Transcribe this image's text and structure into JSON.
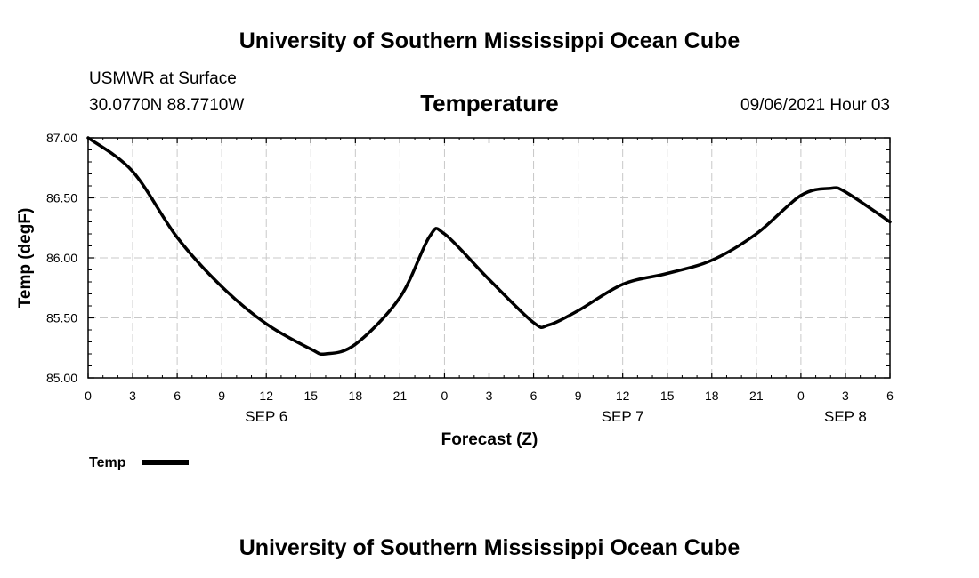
{
  "header": {
    "title_top": "University of Southern Mississippi Ocean Cube",
    "station": "USMWR at Surface",
    "location": "30.0770N  88.7710W",
    "timestamp": "09/06/2021 Hour 03",
    "title_bottom": "University of Southern Mississippi Ocean Cube"
  },
  "chart_data": {
    "type": "line",
    "title": "Temperature",
    "xlabel": "Forecast (Z)",
    "ylabel": "Temp (degF)",
    "ylim": [
      85.0,
      87.0
    ],
    "yticks": [
      "85.00",
      "85.50",
      "86.00",
      "86.50",
      "87.00"
    ],
    "xticks": [
      "0",
      "3",
      "6",
      "9",
      "12",
      "15",
      "18",
      "21",
      "0",
      "3",
      "6",
      "9",
      "12",
      "15",
      "18",
      "21",
      "0",
      "3",
      "6"
    ],
    "date_labels": [
      {
        "label": "SEP 6",
        "tick_index": 4
      },
      {
        "label": "SEP 7",
        "tick_index": 12
      },
      {
        "label": "SEP 8",
        "tick_index": 17
      }
    ],
    "grid": true,
    "legend": "bottom-left",
    "series": [
      {
        "name": "Temp",
        "color": "#000000",
        "x": [
          "2021-09-06 00Z",
          "2021-09-06 03Z",
          "2021-09-06 06Z",
          "2021-09-06 09Z",
          "2021-09-06 12Z",
          "2021-09-06 15Z",
          "2021-09-06 16Z",
          "2021-09-06 18Z",
          "2021-09-06 21Z",
          "2021-09-06 23Z",
          "2021-09-07 00Z",
          "2021-09-07 03Z",
          "2021-09-07 06Z",
          "2021-09-07 07Z",
          "2021-09-07 09Z",
          "2021-09-07 12Z",
          "2021-09-07 15Z",
          "2021-09-07 18Z",
          "2021-09-07 21Z",
          "2021-09-08 00Z",
          "2021-09-08 02Z",
          "2021-09-08 03Z",
          "2021-09-08 06Z"
        ],
        "values": [
          87.0,
          86.72,
          86.17,
          85.76,
          85.45,
          85.24,
          85.2,
          85.28,
          85.67,
          86.18,
          86.2,
          85.82,
          85.46,
          85.44,
          85.56,
          85.78,
          85.87,
          85.98,
          86.2,
          86.52,
          86.58,
          86.55,
          86.3
        ]
      }
    ]
  },
  "legend": {
    "label": "Temp"
  }
}
